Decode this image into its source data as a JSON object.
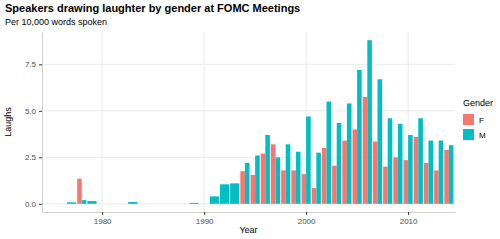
{
  "chart_data": {
    "type": "bar",
    "title": "Speakers drawing laughter by gender at FOMC Meetings",
    "subtitle": "Per 10,000 words spoken",
    "x_label": "Year",
    "y_label": "Laughs",
    "legend_title": "Gender",
    "x": [
      1977,
      1978,
      1979,
      1980,
      1981,
      1982,
      1983,
      1984,
      1985,
      1986,
      1987,
      1988,
      1989,
      1990,
      1991,
      1992,
      1993,
      1994,
      1995,
      1996,
      1997,
      1998,
      1999,
      2000,
      2001,
      2002,
      2003,
      2004,
      2005,
      2006,
      2007,
      2008,
      2009,
      2010,
      2011,
      2012,
      2013,
      2014
    ],
    "series": [
      {
        "name": "F",
        "color": "#F8766D",
        "values": [
          null,
          1.35,
          null,
          null,
          null,
          null,
          null,
          null,
          null,
          null,
          null,
          null,
          null,
          null,
          null,
          null,
          null,
          1.75,
          1.55,
          2.7,
          3.2,
          1.8,
          1.8,
          1.6,
          0.85,
          3.0,
          2.05,
          3.4,
          4.0,
          5.75,
          3.35,
          2.0,
          2.5,
          2.35,
          3.6,
          2.2,
          1.8,
          2.9
        ]
      },
      {
        "name": "M",
        "color": "#00BFC4",
        "values": [
          0.08,
          0.2,
          0.15,
          null,
          null,
          null,
          0.1,
          null,
          null,
          null,
          null,
          null,
          0.05,
          null,
          0.4,
          1.05,
          1.1,
          2.2,
          2.6,
          3.7,
          2.5,
          3.2,
          2.8,
          4.7,
          2.75,
          5.5,
          4.35,
          5.4,
          7.2,
          8.8,
          6.7,
          4.6,
          4.3,
          3.7,
          4.6,
          3.4,
          3.4,
          3.15
        ]
      }
    ],
    "xlim": [
      1974.1,
      2014.6
    ],
    "xticks": [
      1980,
      1990,
      2000,
      2010
    ],
    "ylim": [
      -0.44,
      9.24
    ],
    "yticks": [
      {
        "value": 0,
        "label": "0.0"
      },
      {
        "value": 2.5,
        "label": "2.5"
      },
      {
        "value": 5,
        "label": "5.0"
      },
      {
        "value": 7.5,
        "label": "7.5"
      }
    ],
    "grid": true,
    "legend": "right"
  }
}
